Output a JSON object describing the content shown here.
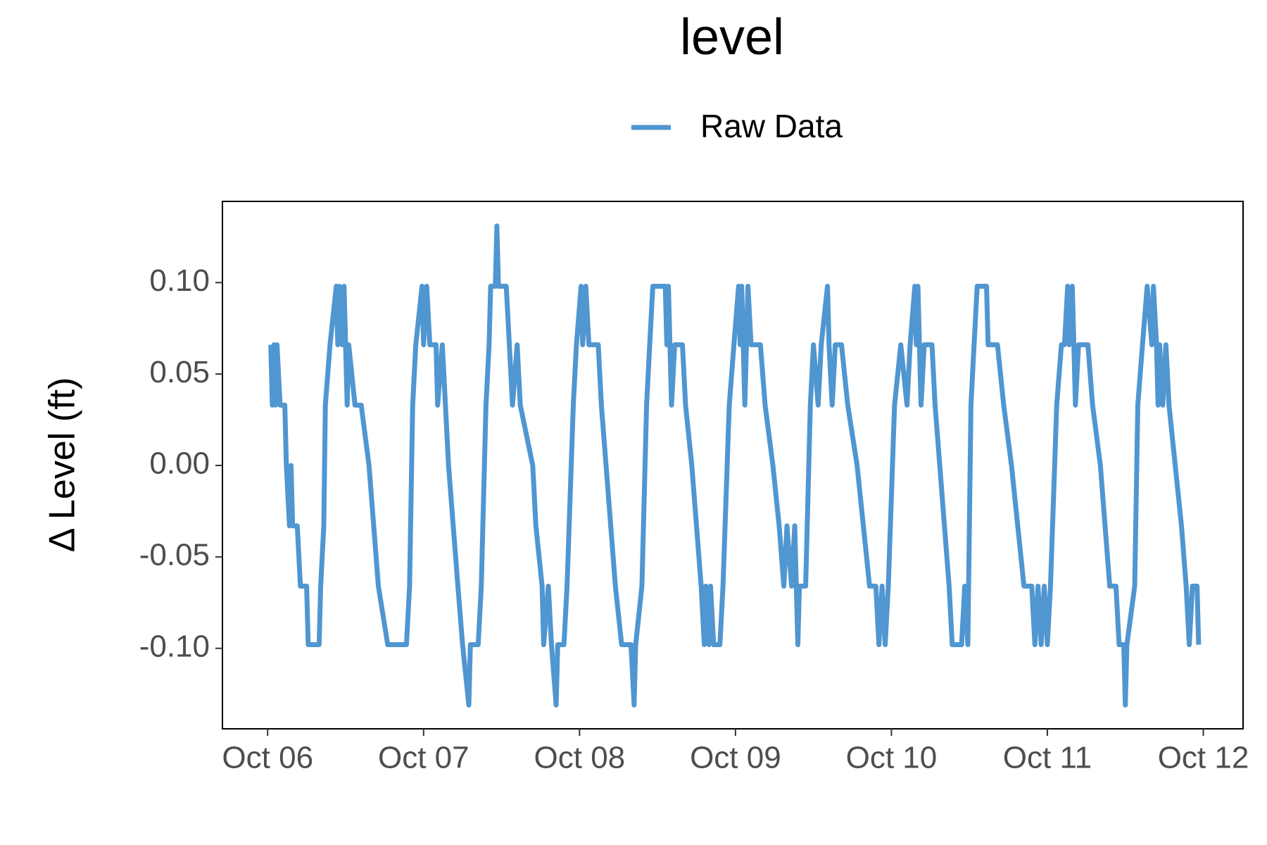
{
  "chart_data": {
    "type": "line",
    "title": "level",
    "ylabel": "Δ Level (ft)",
    "xlim": [
      -0.29,
      6.255
    ],
    "xticks": [
      {
        "value": 0,
        "label": "Oct 06"
      },
      {
        "value": 1,
        "label": "Oct 07"
      },
      {
        "value": 2,
        "label": "Oct 08"
      },
      {
        "value": 3,
        "label": "Oct 09"
      },
      {
        "value": 4,
        "label": "Oct 10"
      },
      {
        "value": 5,
        "label": "Oct 11"
      },
      {
        "value": 6,
        "label": "Oct 12"
      }
    ],
    "ylim": [
      -0.144,
      0.1444
    ],
    "yticks": [
      {
        "value": -0.1,
        "label": "-0.10"
      },
      {
        "value": -0.05,
        "label": "-0.05"
      },
      {
        "value": 0,
        "label": "0.00"
      },
      {
        "value": 0.05,
        "label": "0.05"
      },
      {
        "value": 0.1,
        "label": "0.10"
      }
    ],
    "legend": "top",
    "x": [
      0.02,
      0.03,
      0.04,
      0.05,
      0.06,
      0.08,
      0.11,
      0.12,
      0.14,
      0.15,
      0.16,
      0.19,
      0.21,
      0.25,
      0.26,
      0.33,
      0.34,
      0.36,
      0.37,
      0.4,
      0.44,
      0.45,
      0.46,
      0.48,
      0.49,
      0.51,
      0.52,
      0.56,
      0.6,
      0.65,
      0.68,
      0.71,
      0.77,
      0.89,
      0.91,
      0.93,
      0.95,
      0.99,
      1.0,
      1.02,
      1.04,
      1.08,
      1.09,
      1.12,
      1.14,
      1.16,
      1.19,
      1.22,
      1.25,
      1.29,
      1.3,
      1.35,
      1.37,
      1.4,
      1.42,
      1.43,
      1.46,
      1.47,
      1.48,
      1.53,
      1.55,
      1.57,
      1.6,
      1.62,
      1.7,
      1.72,
      1.76,
      1.77,
      1.8,
      1.82,
      1.85,
      1.86,
      1.9,
      1.92,
      1.96,
      1.98,
      2.01,
      2.02,
      2.04,
      2.06,
      2.12,
      2.14,
      2.17,
      2.2,
      2.23,
      2.27,
      2.33,
      2.35,
      2.36,
      2.4,
      2.43,
      2.45,
      2.47,
      2.55,
      2.56,
      2.57,
      2.59,
      2.61,
      2.66,
      2.68,
      2.72,
      2.75,
      2.78,
      2.8,
      2.81,
      2.83,
      2.84,
      2.86,
      2.9,
      2.92,
      2.96,
      2.99,
      3.02,
      3.03,
      3.04,
      3.06,
      3.08,
      3.1,
      3.16,
      3.19,
      3.24,
      3.28,
      3.31,
      3.33,
      3.36,
      3.38,
      3.4,
      3.41,
      3.45,
      3.48,
      3.5,
      3.53,
      3.55,
      3.59,
      3.6,
      3.62,
      3.64,
      3.68,
      3.72,
      3.78,
      3.82,
      3.86,
      3.9,
      3.92,
      3.94,
      3.96,
      3.98,
      4.02,
      4.06,
      4.1,
      4.12,
      4.15,
      4.16,
      4.17,
      4.19,
      4.21,
      4.26,
      4.28,
      4.31,
      4.34,
      4.37,
      4.39,
      4.45,
      4.47,
      4.49,
      4.51,
      4.53,
      4.55,
      4.61,
      4.62,
      4.68,
      4.72,
      4.77,
      4.81,
      4.85,
      4.9,
      4.92,
      4.94,
      4.96,
      4.98,
      5.0,
      5.02,
      5.06,
      5.09,
      5.11,
      5.13,
      5.14,
      5.16,
      5.18,
      5.2,
      5.26,
      5.29,
      5.34,
      5.37,
      5.4,
      5.44,
      5.46,
      5.49,
      5.5,
      5.51,
      5.56,
      5.58,
      5.61,
      5.64,
      5.67,
      5.68,
      5.7,
      5.71,
      5.72,
      5.74,
      5.76,
      5.78,
      5.82,
      5.86,
      5.89,
      5.91,
      5.93,
      5.96,
      5.97
    ],
    "series": [
      {
        "name": "Raw Data",
        "color": "#5096d0",
        "values": [
          0.066,
          0.033,
          0.066,
          0.033,
          0.066,
          0.033,
          0.033,
          0,
          -0.033,
          0,
          -0.033,
          -0.033,
          -0.066,
          -0.066,
          -0.098,
          -0.098,
          -0.066,
          -0.033,
          0.033,
          0.066,
          0.098,
          0.066,
          0.098,
          0.066,
          0.098,
          0.033,
          0.066,
          0.033,
          0.033,
          0,
          -0.033,
          -0.066,
          -0.098,
          -0.098,
          -0.066,
          0.033,
          0.066,
          0.098,
          0.066,
          0.098,
          0.066,
          0.066,
          0.033,
          0.066,
          0.033,
          0,
          -0.033,
          -0.066,
          -0.098,
          -0.131,
          -0.098,
          -0.098,
          -0.066,
          0.033,
          0.066,
          0.098,
          0.098,
          0.131,
          0.098,
          0.098,
          0.066,
          0.033,
          0.066,
          0.033,
          0,
          -0.033,
          -0.066,
          -0.098,
          -0.066,
          -0.098,
          -0.131,
          -0.098,
          -0.098,
          -0.066,
          0.033,
          0.066,
          0.098,
          0.066,
          0.098,
          0.066,
          0.066,
          0.033,
          0,
          -0.033,
          -0.066,
          -0.098,
          -0.098,
          -0.131,
          -0.098,
          -0.066,
          0.033,
          0.066,
          0.098,
          0.098,
          0.066,
          0.098,
          0.033,
          0.066,
          0.066,
          0.033,
          0,
          -0.033,
          -0.066,
          -0.098,
          -0.066,
          -0.098,
          -0.066,
          -0.098,
          -0.098,
          -0.066,
          0.033,
          0.066,
          0.098,
          0.066,
          0.098,
          0.033,
          0.098,
          0.066,
          0.066,
          0.033,
          0,
          -0.033,
          -0.066,
          -0.033,
          -0.066,
          -0.033,
          -0.098,
          -0.066,
          -0.066,
          0.033,
          0.066,
          0.033,
          0.066,
          0.098,
          0.066,
          0.033,
          0.066,
          0.066,
          0.033,
          0,
          -0.033,
          -0.066,
          -0.066,
          -0.098,
          -0.066,
          -0.098,
          -0.066,
          0.033,
          0.066,
          0.033,
          0.066,
          0.098,
          0.066,
          0.098,
          0.033,
          0.066,
          0.066,
          0.033,
          0,
          -0.033,
          -0.066,
          -0.098,
          -0.098,
          -0.066,
          -0.098,
          0.033,
          0.066,
          0.098,
          0.098,
          0.066,
          0.066,
          0.033,
          0,
          -0.033,
          -0.066,
          -0.066,
          -0.098,
          -0.066,
          -0.098,
          -0.066,
          -0.098,
          -0.066,
          0.033,
          0.066,
          0.066,
          0.098,
          0.066,
          0.098,
          0.033,
          0.066,
          0.066,
          0.033,
          0,
          -0.033,
          -0.066,
          -0.066,
          -0.098,
          -0.098,
          -0.131,
          -0.098,
          -0.066,
          0.033,
          0.066,
          0.098,
          0.066,
          0.098,
          0.066,
          0.033,
          0.066,
          0.033,
          0.066,
          0.033,
          0,
          -0.033,
          -0.066,
          -0.098,
          -0.066,
          -0.066,
          -0.098
        ]
      }
    ]
  }
}
